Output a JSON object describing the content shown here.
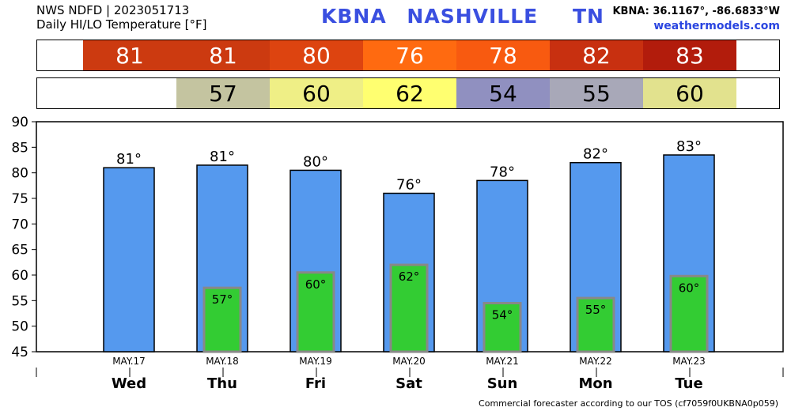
{
  "header": {
    "line1": "NWS NDFD | 2023051713",
    "line2": "Daily HI/LO Temperature [°F]",
    "station": "KBNA",
    "city": "NASHVILLE",
    "state": "TN",
    "coords": "KBNA: 36.1167°, -86.6833°W",
    "site": "weathermodels.com"
  },
  "hi_strip": [
    {
      "label": "81",
      "color": "#cc3a10"
    },
    {
      "label": "81",
      "color": "#cc3a10"
    },
    {
      "label": "80",
      "color": "#dd4410"
    },
    {
      "label": "76",
      "color": "#ff6a10"
    },
    {
      "label": "78",
      "color": "#f85a10"
    },
    {
      "label": "82",
      "color": "#c83010"
    },
    {
      "label": "83",
      "color": "#b21c0c"
    }
  ],
  "lo_strip": [
    {
      "label": "",
      "color": "#ffffff"
    },
    {
      "label": "57",
      "color": "#c4c4a0"
    },
    {
      "label": "60",
      "color": "#efef86"
    },
    {
      "label": "62",
      "color": "#ffff70"
    },
    {
      "label": "54",
      "color": "#9090c0"
    },
    {
      "label": "55",
      "color": "#a8a8b8"
    },
    {
      "label": "60",
      "color": "#e2e28e"
    }
  ],
  "chart_data": {
    "type": "bar",
    "categories": [
      "Wed",
      "Thu",
      "Fri",
      "Sat",
      "Sun",
      "Mon",
      "Tue"
    ],
    "dates": [
      "MAY.17",
      "MAY.18",
      "MAY.19",
      "MAY.20",
      "MAY.21",
      "MAY.22",
      "MAY.23"
    ],
    "series": [
      {
        "values": [
          81,
          81.5,
          80.5,
          76,
          78.5,
          82,
          83.5
        ],
        "labels": [
          "81°",
          "81°",
          "80°",
          "76°",
          "78°",
          "82°",
          "83°"
        ],
        "color": "#5599ee"
      },
      {
        "values": [
          null,
          57.5,
          60.5,
          62,
          54.5,
          55.5,
          59.8
        ],
        "labels": [
          "",
          "57°",
          "60°",
          "62°",
          "54°",
          "55°",
          "60°"
        ],
        "color": "#33cc33"
      }
    ],
    "y_ticks": [
      "90",
      "85",
      "80",
      "75",
      "70",
      "65",
      "60",
      "55",
      "50",
      "45"
    ],
    "ylim": [
      45,
      90
    ],
    "grid": false
  },
  "footer": "Commercial forecaster according to our TOS (cf7059f0UKBNA0p059)"
}
